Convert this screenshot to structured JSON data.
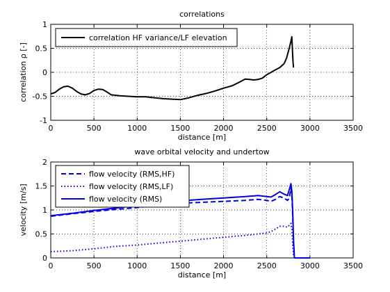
{
  "chart_data": [
    {
      "type": "line",
      "title": "correlations",
      "xlabel": "distance [m]",
      "ylabel": "correlation ρ [-]",
      "xlim": [
        0,
        3500
      ],
      "ylim": [
        -1,
        1
      ],
      "xticks": [
        0,
        500,
        1000,
        1500,
        2000,
        2500,
        3000,
        3500
      ],
      "yticks": [
        -1,
        -0.5,
        0,
        0.5,
        1
      ],
      "xtick_labels": [
        "0",
        "500",
        "1000",
        "1500",
        "2000",
        "2500",
        "3000",
        "3500"
      ],
      "ytick_labels": [
        "-1",
        "-0.5",
        "0",
        "0.5",
        "1"
      ],
      "grid": true,
      "legend": "top-left",
      "series": [
        {
          "name": "correlation HF variance/LF elevation",
          "color": "#000000",
          "style": "solid",
          "x": [
            0,
            50,
            100,
            150,
            200,
            250,
            300,
            350,
            400,
            450,
            500,
            550,
            600,
            650,
            700,
            800,
            900,
            1000,
            1100,
            1200,
            1300,
            1400,
            1500,
            1600,
            1700,
            1800,
            1900,
            2000,
            2100,
            2200,
            2250,
            2300,
            2350,
            2400,
            2450,
            2500,
            2550,
            2600,
            2650,
            2700,
            2730,
            2760,
            2780,
            2790,
            2795,
            2800,
            2805,
            2810
          ],
          "y": [
            -0.45,
            -0.42,
            -0.35,
            -0.3,
            -0.29,
            -0.33,
            -0.4,
            -0.45,
            -0.47,
            -0.44,
            -0.38,
            -0.35,
            -0.36,
            -0.41,
            -0.47,
            -0.49,
            -0.5,
            -0.51,
            -0.51,
            -0.53,
            -0.55,
            -0.56,
            -0.57,
            -0.53,
            -0.48,
            -0.44,
            -0.39,
            -0.33,
            -0.28,
            -0.19,
            -0.14,
            -0.15,
            -0.16,
            -0.15,
            -0.12,
            -0.05,
            0.0,
            0.05,
            0.1,
            0.18,
            0.3,
            0.5,
            0.65,
            0.74,
            0.55,
            0.35,
            0.2,
            0.1
          ]
        }
      ]
    },
    {
      "type": "line",
      "title": "wave orbital velocity and undertow",
      "xlabel": "distance [m]",
      "ylabel": "velocity [m/s]",
      "xlim": [
        0,
        3500
      ],
      "ylim": [
        0,
        2
      ],
      "xticks": [
        0,
        500,
        1000,
        1500,
        2000,
        2500,
        3000,
        3500
      ],
      "yticks": [
        0,
        0.5,
        1,
        1.5,
        2
      ],
      "xtick_labels": [
        "0",
        "500",
        "1000",
        "1500",
        "2000",
        "2500",
        "3000",
        "3500"
      ],
      "ytick_labels": [
        "0",
        "0.5",
        "1",
        "1.5",
        "2"
      ],
      "grid": true,
      "legend": "top-left",
      "series": [
        {
          "name": "flow velocity (RMS,HF)",
          "color": "#0000e6",
          "style": "dashed",
          "x": [
            0,
            250,
            500,
            750,
            1000,
            1250,
            1500,
            1750,
            2000,
            2250,
            2400,
            2500,
            2550,
            2600,
            2650,
            2700,
            2740,
            2760,
            2780,
            2790,
            2800,
            2810,
            2820
          ],
          "y": [
            0.87,
            0.92,
            0.97,
            1.01,
            1.05,
            1.1,
            1.14,
            1.16,
            1.18,
            1.2,
            1.22,
            1.2,
            1.18,
            1.22,
            1.28,
            1.25,
            1.2,
            1.24,
            1.45,
            1.3,
            0.9,
            0.3,
            0.0
          ]
        },
        {
          "name": "flow velocity (RMS,LF)",
          "color": "#0000e6",
          "style": "dotted",
          "x": [
            0,
            250,
            500,
            750,
            1000,
            1250,
            1500,
            1750,
            2000,
            2250,
            2400,
            2500,
            2550,
            2600,
            2650,
            2700,
            2740,
            2760,
            2780,
            2790,
            2800,
            2810,
            2820
          ],
          "y": [
            0.13,
            0.15,
            0.19,
            0.24,
            0.27,
            0.31,
            0.35,
            0.39,
            0.43,
            0.47,
            0.5,
            0.52,
            0.55,
            0.6,
            0.66,
            0.66,
            0.64,
            0.68,
            0.72,
            0.6,
            0.3,
            0.05,
            0.0
          ]
        },
        {
          "name": "flow velocity (RMS)",
          "color": "#0000e6",
          "style": "solid",
          "x": [
            0,
            250,
            500,
            750,
            1000,
            1250,
            1500,
            1750,
            2000,
            2250,
            2400,
            2500,
            2550,
            2600,
            2650,
            2700,
            2740,
            2760,
            2780,
            2790,
            2800,
            2810,
            2820,
            2900,
            3000
          ],
          "y": [
            0.88,
            0.93,
            0.99,
            1.04,
            1.09,
            1.14,
            1.19,
            1.22,
            1.25,
            1.28,
            1.3,
            1.28,
            1.27,
            1.32,
            1.38,
            1.33,
            1.3,
            1.42,
            1.55,
            1.4,
            1.0,
            0.4,
            0.0,
            0.0,
            0.0
          ]
        }
      ]
    }
  ]
}
